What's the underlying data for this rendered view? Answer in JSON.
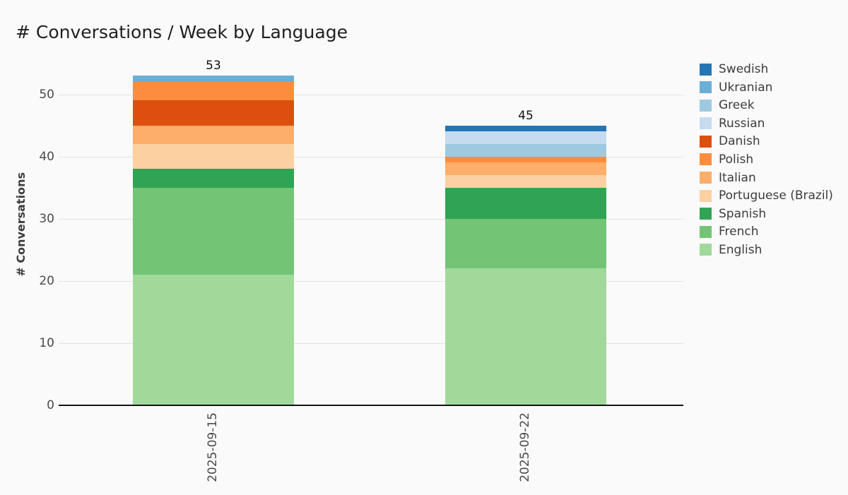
{
  "chart_data": {
    "type": "bar",
    "stacked": true,
    "orientation": "vertical",
    "title": "# Conversations / Week by Language",
    "xlabel": "",
    "ylabel": "# Conversations",
    "categories": [
      "2025-09-15",
      "2025-09-22"
    ],
    "series": [
      {
        "name": "Swedish",
        "color": "#2575b5",
        "values": [
          0,
          1
        ]
      },
      {
        "name": "Ukranian",
        "color": "#6baed6",
        "values": [
          1,
          0
        ]
      },
      {
        "name": "Greek",
        "color": "#9ecae1",
        "values": [
          0,
          2
        ]
      },
      {
        "name": "Russian",
        "color": "#c6dbef",
        "values": [
          0,
          2
        ]
      },
      {
        "name": "Danish",
        "color": "#dd4f0e",
        "values": [
          4,
          0
        ]
      },
      {
        "name": "Polish",
        "color": "#fd8d3c",
        "values": [
          3,
          1
        ]
      },
      {
        "name": "Italian",
        "color": "#fdae6b",
        "values": [
          3,
          2
        ]
      },
      {
        "name": "Portuguese (Brazil)",
        "color": "#fdd0a2",
        "values": [
          4,
          2
        ]
      },
      {
        "name": "Spanish",
        "color": "#31a354",
        "values": [
          3,
          5
        ]
      },
      {
        "name": "French",
        "color": "#74c476",
        "values": [
          14,
          8
        ]
      },
      {
        "name": "English",
        "color": "#a1d99b",
        "values": [
          21,
          22
        ]
      }
    ],
    "totals": [
      53,
      45
    ],
    "stack_order_bottom_to_top": [
      [
        "English",
        "French",
        "Spanish",
        "Portuguese (Brazil)",
        "Italian",
        "Danish",
        "Polish",
        "Ukranian"
      ],
      [
        "English",
        "French",
        "Spanish",
        "Portuguese (Brazil)",
        "Italian",
        "Polish",
        "Greek",
        "Russian",
        "Swedish"
      ]
    ],
    "legend_order_top_to_bottom": [
      "Swedish",
      "Ukranian",
      "Greek",
      "Russian",
      "Danish",
      "Polish",
      "Italian",
      "Portuguese (Brazil)",
      "Spanish",
      "French",
      "English"
    ],
    "yticks": [
      0,
      10,
      20,
      30,
      40,
      50
    ],
    "ylim": [
      0,
      55
    ],
    "grid": true,
    "legend_position": "right"
  },
  "colors": {
    "background": "#fafafa",
    "gridline": "#e2e2e2",
    "axis_line": "#151515",
    "tick_text": "#4a4a4a",
    "title_text": "#1f1f1f"
  }
}
